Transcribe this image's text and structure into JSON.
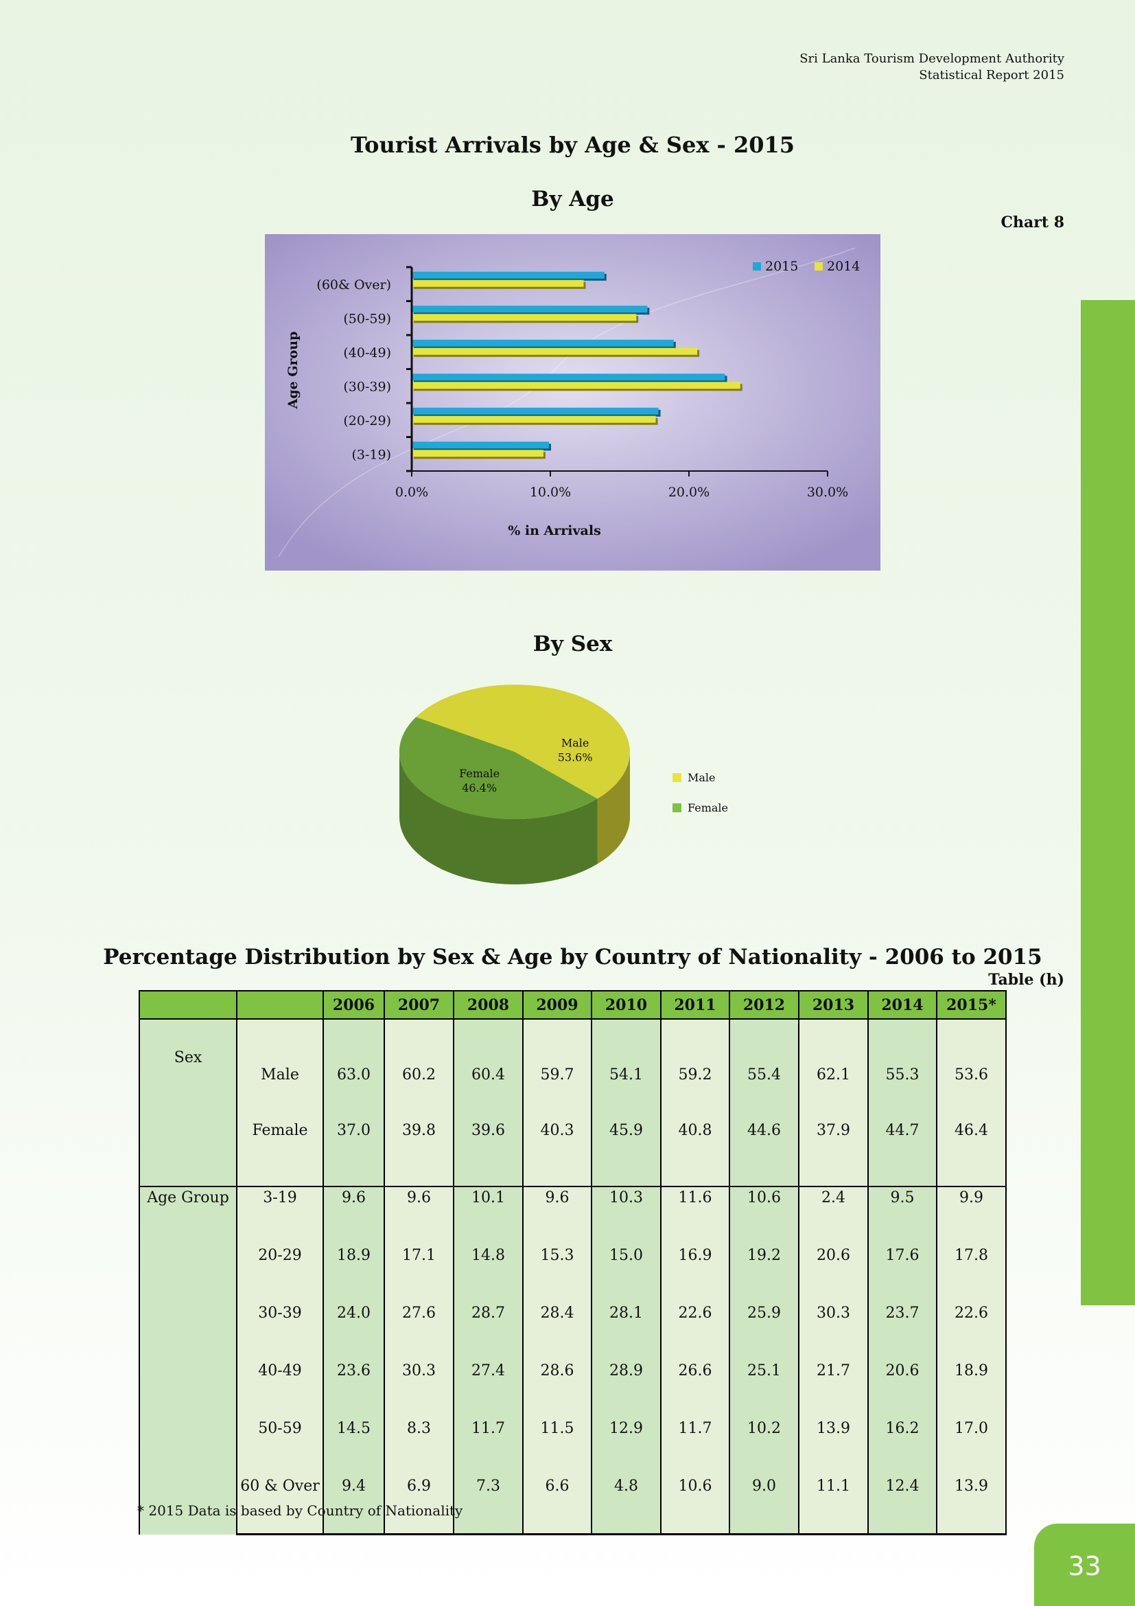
{
  "header": {
    "org": "Sri Lanka Tourism Development Authority",
    "report": "Statistical Report 2015"
  },
  "page_title": "Tourist Arrivals by Age & Sex - 2015",
  "age_section_title": "By Age",
  "chart_label": "Chart 8",
  "sex_section_title": "By Sex",
  "table_title": "Percentage Distribution by Sex & Age by Country of Nationality - 2006 to 2015",
  "table_label": "Table (h)",
  "footnote": "* 2015 Data is based by Country of Nationality",
  "page_number": "33",
  "colors": {
    "series_2015": "#1fa8d8",
    "series_2014": "#e8e53a",
    "male": "#e8e53a",
    "female": "#80c242",
    "accent_green": "#80c242",
    "chart_bg": "#a094c8"
  },
  "chart_data": [
    {
      "type": "bar",
      "orientation": "horizontal",
      "categories": [
        "(3-19)",
        "(20-29)",
        "(30-39)",
        "(40-49)",
        "(50-59)",
        "(60& Over)"
      ],
      "series": [
        {
          "name": "2015",
          "values": [
            9.9,
            17.8,
            22.6,
            18.9,
            17.0,
            13.9
          ]
        },
        {
          "name": "2014",
          "values": [
            9.5,
            17.6,
            23.7,
            20.6,
            16.2,
            12.4
          ]
        }
      ],
      "xlabel": "% in Arrivals",
      "ylabel": "Age Group",
      "xticks": [
        "0.0%",
        "10.0%",
        "20.0%",
        "30.0%"
      ],
      "xlim": [
        0,
        30
      ],
      "legend": "top-right",
      "grid": false
    },
    {
      "type": "pie",
      "labels": [
        "Male",
        "Female"
      ],
      "values": [
        53.6,
        46.4
      ],
      "data_labels": [
        "53.6%",
        "46.4%"
      ],
      "legend": "right"
    }
  ],
  "table": {
    "columns": [
      "",
      "",
      "2006",
      "2007",
      "2008",
      "2009",
      "2010",
      "2011",
      "2012",
      "2013",
      "2014",
      "2015*"
    ],
    "sex_group_label": "Sex",
    "age_group_label": "Age Group",
    "sex_rows": [
      {
        "label": "Male",
        "values": [
          "63.0",
          "60.2",
          "60.4",
          "59.7",
          "54.1",
          "59.2",
          "55.4",
          "62.1",
          "55.3",
          "53.6"
        ]
      },
      {
        "label": "Female",
        "values": [
          "37.0",
          "39.8",
          "39.6",
          "40.3",
          "45.9",
          "40.8",
          "44.6",
          "37.9",
          "44.7",
          "46.4"
        ]
      }
    ],
    "age_rows": [
      {
        "label": "3-19",
        "values": [
          "9.6",
          "9.6",
          "10.1",
          "9.6",
          "10.3",
          "11.6",
          "10.6",
          "2.4",
          "9.5",
          "9.9"
        ]
      },
      {
        "label": "20-29",
        "values": [
          "18.9",
          "17.1",
          "14.8",
          "15.3",
          "15.0",
          "16.9",
          "19.2",
          "20.6",
          "17.6",
          "17.8"
        ]
      },
      {
        "label": "30-39",
        "values": [
          "24.0",
          "27.6",
          "28.7",
          "28.4",
          "28.1",
          "22.6",
          "25.9",
          "30.3",
          "23.7",
          "22.6"
        ]
      },
      {
        "label": "40-49",
        "values": [
          "23.6",
          "30.3",
          "27.4",
          "28.6",
          "28.9",
          "26.6",
          "25.1",
          "21.7",
          "20.6",
          "18.9"
        ]
      },
      {
        "label": "50-59",
        "values": [
          "14.5",
          "8.3",
          "11.7",
          "11.5",
          "12.9",
          "11.7",
          "10.2",
          "13.9",
          "16.2",
          "17.0"
        ]
      },
      {
        "label": "60 & Over",
        "values": [
          "9.4",
          "6.9",
          "7.3",
          "6.6",
          "4.8",
          "10.6",
          "9.0",
          "11.1",
          "12.4",
          "13.9"
        ]
      }
    ]
  }
}
